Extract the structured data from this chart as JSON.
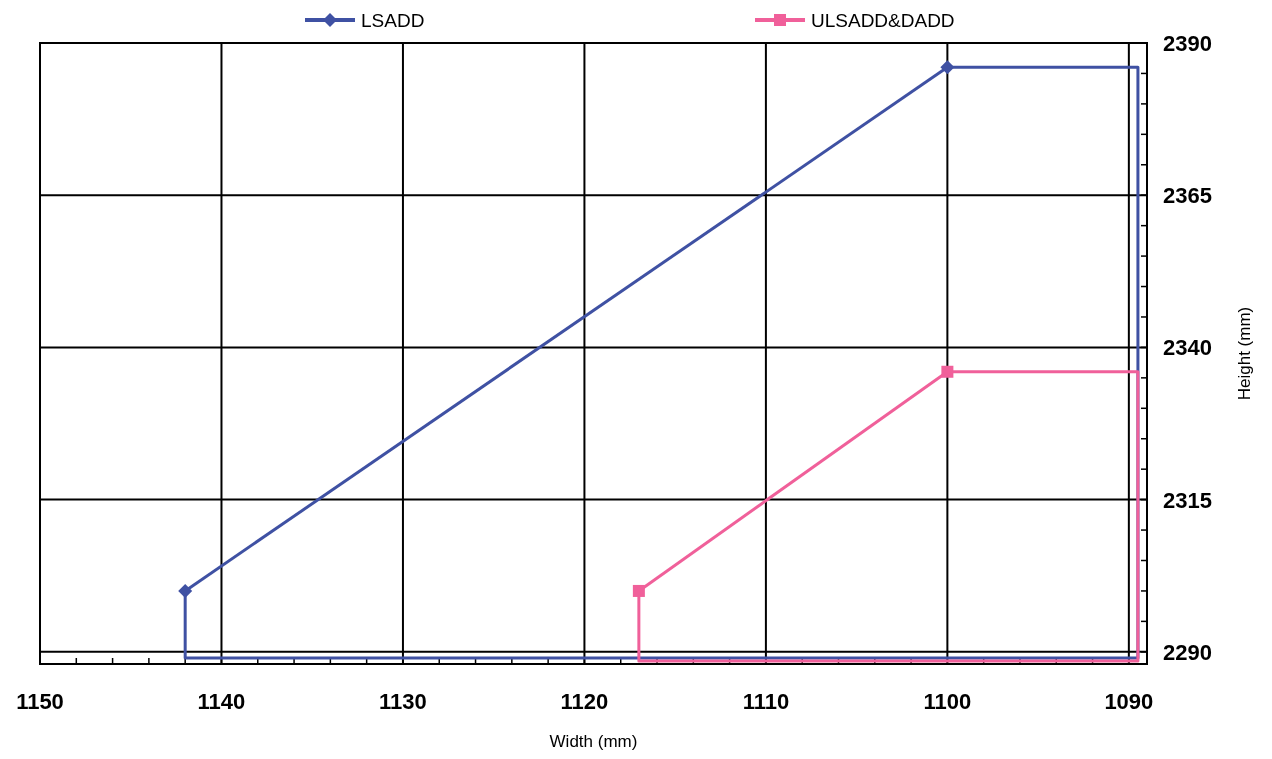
{
  "chart_data": {
    "type": "line",
    "xlabel": "Width (mm)",
    "ylabel": "Height (mm)",
    "xlim": [
      1150,
      1089
    ],
    "ylim": [
      2288,
      2390
    ],
    "xticks": [
      1150,
      {
        "value": 1148,
        "label": null
      },
      {
        "value": 1146,
        "label": null
      },
      {
        "value": 1144,
        "label": null
      },
      {
        "value": 1142,
        "label": null
      },
      1140,
      {
        "value": 1138,
        "label": null
      },
      {
        "value": 1136,
        "label": null
      },
      {
        "value": 1134,
        "label": null
      },
      {
        "value": 1132,
        "label": null
      },
      1130,
      {
        "value": 1128,
        "label": null
      },
      {
        "value": 1126,
        "label": null
      },
      {
        "value": 1124,
        "label": null
      },
      {
        "value": 1122,
        "label": null
      },
      1120,
      {
        "value": 1118,
        "label": null
      },
      {
        "value": 1116,
        "label": null
      },
      {
        "value": 1114,
        "label": null
      },
      {
        "value": 1112,
        "label": null
      },
      1110,
      {
        "value": 1108,
        "label": null
      },
      {
        "value": 1106,
        "label": null
      },
      {
        "value": 1104,
        "label": null
      },
      {
        "value": 1102,
        "label": null
      },
      1100,
      {
        "value": 1098,
        "label": null
      },
      {
        "value": 1096,
        "label": null
      },
      {
        "value": 1094,
        "label": null
      },
      {
        "value": 1092,
        "label": null
      },
      1090
    ],
    "yticks": [
      2290,
      {
        "value": 2295,
        "label": null
      },
      {
        "value": 2300,
        "label": null
      },
      {
        "value": 2305,
        "label": null
      },
      {
        "value": 2310,
        "label": null
      },
      2315,
      {
        "value": 2320,
        "label": null
      },
      {
        "value": 2325,
        "label": null
      },
      {
        "value": 2330,
        "label": null
      },
      {
        "value": 2335,
        "label": null
      },
      2340,
      {
        "value": 2345,
        "label": null
      },
      {
        "value": 2350,
        "label": null
      },
      {
        "value": 2355,
        "label": null
      },
      {
        "value": 2360,
        "label": null
      },
      2365,
      {
        "value": 2370,
        "label": null
      },
      {
        "value": 2375,
        "label": null
      },
      {
        "value": 2380,
        "label": null
      },
      {
        "value": 2385,
        "label": null
      },
      2390
    ],
    "grid": true,
    "legend": "top",
    "line_style": "solid",
    "series": [
      {
        "name": "LSADD",
        "color": "#3f51a3",
        "marker": "diamond",
        "x": [
          1142,
          1100
        ],
        "values": [
          2300,
          2386
        ]
      },
      {
        "color": "#3f51a3",
        "marker": "none",
        "x": [
          1142,
          1142,
          1089.5,
          1089.5,
          1100
        ],
        "values": [
          2300,
          2289,
          2289,
          2386,
          2386
        ]
      },
      {
        "name": "ULSADD&DADD",
        "color": "#f0609a",
        "marker": "square",
        "x": [
          1117,
          1100
        ],
        "values": [
          2300,
          2336
        ]
      },
      {
        "color": "#f0609a",
        "marker": "none",
        "x": [
          1117,
          1117,
          1089.5,
          1089.5,
          1100
        ],
        "values": [
          2300,
          2288.5,
          2288.5,
          2336,
          2336
        ]
      }
    ]
  }
}
